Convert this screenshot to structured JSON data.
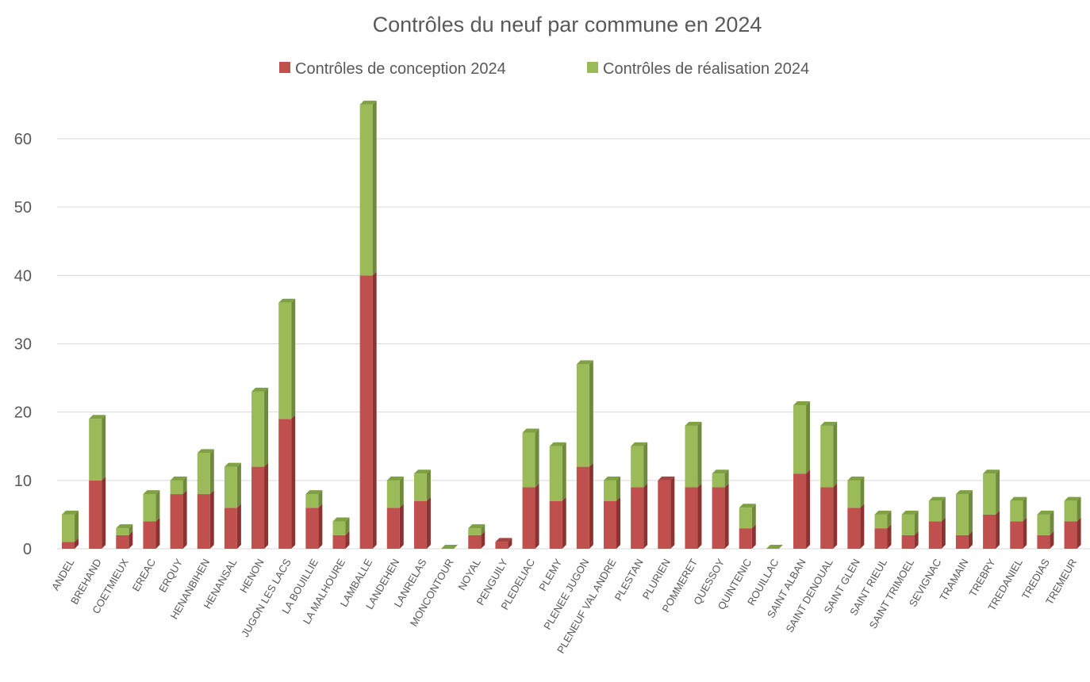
{
  "chart_data": {
    "type": "bar",
    "stacked": true,
    "title": "Contrôles du neuf par commune en 2024",
    "xlabel": "",
    "ylabel": "",
    "ylim": [
      0,
      65
    ],
    "yticks": [
      0,
      10,
      20,
      30,
      40,
      50,
      60
    ],
    "grid": true,
    "legend_position": "top",
    "categories": [
      "ANDEL",
      "BREHAND",
      "COETMIEUX",
      "EREAC",
      "ERQUY",
      "HENANBIHEN",
      "HENANSAL",
      "HENON",
      "JUGON LES LACS",
      "LA BOUILLIE",
      "LA MALHOURE",
      "LAMBALLE",
      "LANDEHEN",
      "LANRELAS",
      "MONCONTOUR",
      "NOYAL",
      "PENGUILY",
      "PLEDELIAC",
      "PLEMY",
      "PLENEE JUGON",
      "PLENEUF VAL ANDRE",
      "PLESTAN",
      "PLURIEN",
      "POMMERET",
      "QUESSOY",
      "QUINTENIC",
      "ROUILLAC",
      "SAINT ALBAN",
      "SAINT DENOUAL",
      "SAINT GLEN",
      "SAINT RIEUL",
      "SAINT TRIMOEL",
      "SEVIGNAC",
      "TRAMAIN",
      "TREBRY",
      "TREDANIEL",
      "TREDIAS",
      "TREMEUR"
    ],
    "series": [
      {
        "name": "Contrôles de conception 2024",
        "color": "#c0504d",
        "side": "#8c3331",
        "top": "#a84240",
        "values": [
          1,
          10,
          2,
          4,
          8,
          8,
          6,
          12,
          19,
          6,
          2,
          40,
          6,
          7,
          0,
          2,
          1,
          9,
          7,
          12,
          7,
          9,
          10,
          9,
          9,
          3,
          0,
          11,
          9,
          6,
          3,
          2,
          4,
          2,
          5,
          4,
          2,
          4
        ]
      },
      {
        "name": "Contrôles de réalisation 2024",
        "color": "#9bbb59",
        "side": "#6f8a3c",
        "top": "#7fa043",
        "values": [
          4,
          9,
          1,
          4,
          2,
          6,
          6,
          11,
          17,
          2,
          2,
          25,
          4,
          4,
          0,
          1,
          0,
          8,
          8,
          15,
          3,
          6,
          0,
          9,
          2,
          3,
          0,
          10,
          9,
          4,
          2,
          3,
          3,
          6,
          6,
          3,
          3,
          3
        ]
      }
    ]
  }
}
